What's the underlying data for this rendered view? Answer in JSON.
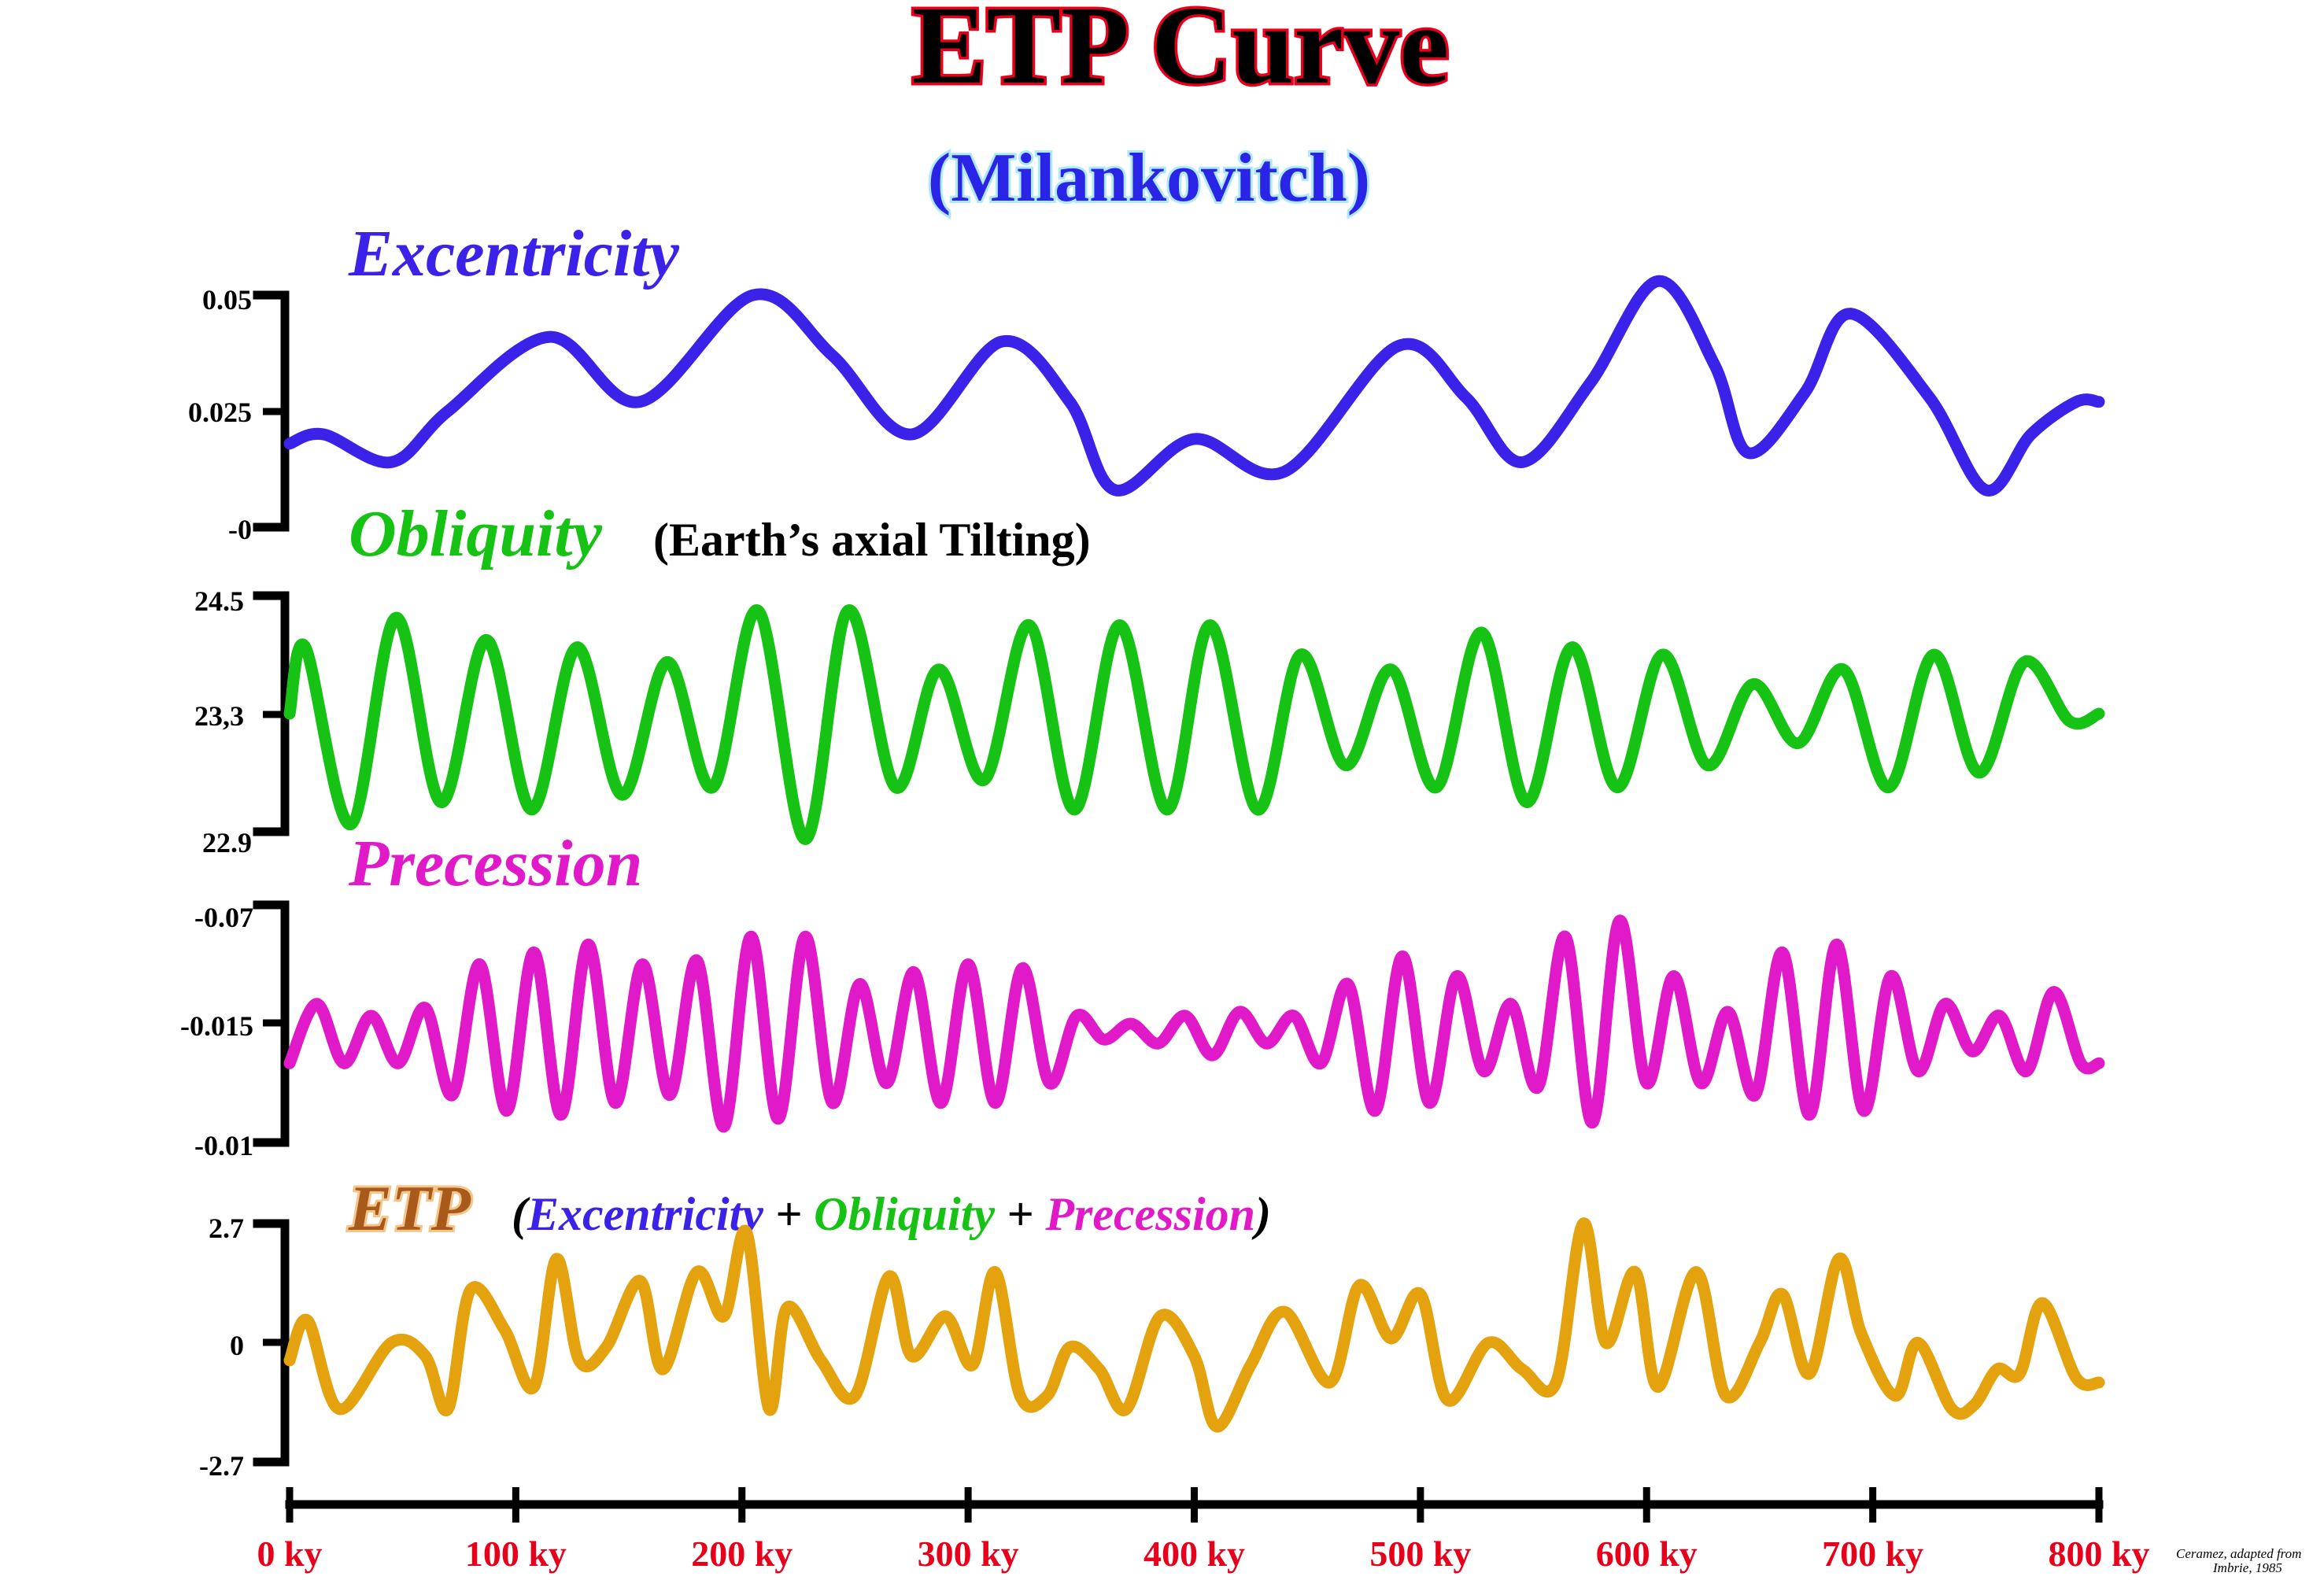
{
  "title": "ETP Curve",
  "subtitle": "(Milankovitch)",
  "credit_line1": "Ceramez, adapted from",
  "credit_line2": "Imbrie, 1985",
  "colors": {
    "title_fill": "#000000",
    "title_outline": "#e8001a",
    "subtitle": "#2a24e6",
    "excentricity": "#3a22e8",
    "obliquity": "#16c214",
    "precession": "#e01ac8",
    "etp": "#e3a20e",
    "x_tick_labels": "#e8001a"
  },
  "chart_data": {
    "type": "line",
    "x": [
      0,
      20,
      40,
      70,
      110,
      130,
      150,
      170,
      210,
      230,
      260,
      300,
      330,
      360,
      380,
      400,
      420,
      440,
      490,
      510,
      540,
      560,
      580,
      600,
      620,
      640,
      660,
      700,
      720,
      740,
      760,
      780,
      800
    ],
    "x_tick_labels": [
      "0 ky",
      "100 ky",
      "200 ky",
      "300 ky",
      "400 ky",
      "500 ky",
      "600 ky",
      "700 ky",
      "800 ky"
    ],
    "xlim": [
      0,
      800
    ],
    "panels": [
      {
        "name": "Excentricity",
        "note": "",
        "ylim": [
          0,
          0.05
        ],
        "y_ticks": [
          "0.05",
          "0.025",
          "-0"
        ],
        "series": [
          {
            "name": "Excentricity",
            "x": [
              0,
              15,
              45,
              70,
              115,
              155,
              205,
              240,
              275,
              315,
              345,
              365,
              400,
              440,
              490,
              520,
              545,
              575,
              605,
              630,
              645,
              670,
              690,
              725,
              750,
              770,
              790,
              800
            ],
            "values": [
              0.018,
              0.02,
              0.014,
              0.025,
              0.041,
              0.027,
              0.05,
              0.037,
              0.02,
              0.04,
              0.027,
              0.008,
              0.019,
              0.012,
              0.039,
              0.028,
              0.014,
              0.031,
              0.053,
              0.035,
              0.016,
              0.029,
              0.046,
              0.028,
              0.008,
              0.02,
              0.027,
              0.027
            ]
          }
        ]
      },
      {
        "name": "Obliquity",
        "note": "(Earth’s axial Tilting)",
        "ylim": [
          22.9,
          24.5
        ],
        "y_ticks": [
          "24.5",
          "23,3",
          "22.9"
        ],
        "series": [
          {
            "name": "Obliquity",
            "x": [
              0,
              7,
              27,
              47,
              67,
              87,
              107,
              127,
              147,
              167,
              187,
              207,
              228,
              247,
              268,
              287,
              307,
              327,
              347,
              367,
              388,
              407,
              428,
              447,
              467,
              487,
              507,
              527,
              547,
              567,
              587,
              607,
              627,
              647,
              667,
              687,
              707,
              727,
              747,
              767,
              787,
              800
            ],
            "values": [
              23.7,
              24.15,
              22.95,
              24.35,
              23.1,
              24.2,
              23.05,
              24.15,
              23.15,
              24.05,
              23.2,
              24.4,
              22.85,
              24.4,
              23.2,
              24.0,
              23.25,
              24.3,
              23.05,
              24.3,
              23.05,
              24.3,
              23.05,
              24.1,
              23.35,
              24.0,
              23.2,
              24.25,
              23.1,
              24.15,
              23.2,
              24.1,
              23.35,
              23.9,
              23.5,
              24.0,
              23.2,
              24.1,
              23.3,
              24.05,
              23.65,
              23.7
            ]
          }
        ]
      },
      {
        "name": "Precession",
        "note": "",
        "ylim": [
          -0.07,
          -0.01
        ],
        "y_ticks": [
          "-0.07",
          "-0.015",
          "-0.01"
        ],
        "series": [
          {
            "name": "Precession",
            "x": [
              0,
              12,
              24,
              36,
              48,
              60,
              72,
              84,
              96,
              108,
              120,
              132,
              144,
              156,
              168,
              180,
              192,
              204,
              216,
              228,
              240,
              252,
              264,
              276,
              288,
              300,
              312,
              324,
              336,
              348,
              360,
              372,
              384,
              396,
              408,
              420,
              432,
              444,
              456,
              468,
              480,
              492,
              504,
              516,
              528,
              540,
              552,
              564,
              576,
              588,
              600,
              612,
              624,
              636,
              648,
              660,
              672,
              684,
              696,
              708,
              720,
              732,
              744,
              756,
              768,
              780,
              792,
              800
            ],
            "values": [
              -0.03,
              -0.045,
              -0.03,
              -0.042,
              -0.03,
              -0.044,
              -0.022,
              -0.055,
              -0.018,
              -0.058,
              -0.017,
              -0.06,
              -0.02,
              -0.055,
              -0.022,
              -0.056,
              -0.014,
              -0.062,
              -0.016,
              -0.062,
              -0.02,
              -0.05,
              -0.025,
              -0.053,
              -0.02,
              -0.055,
              -0.02,
              -0.054,
              -0.025,
              -0.042,
              -0.036,
              -0.04,
              -0.035,
              -0.042,
              -0.032,
              -0.043,
              -0.035,
              -0.042,
              -0.03,
              -0.05,
              -0.018,
              -0.057,
              -0.02,
              -0.052,
              -0.028,
              -0.045,
              -0.024,
              -0.062,
              -0.015,
              -0.066,
              -0.025,
              -0.052,
              -0.025,
              -0.043,
              -0.022,
              -0.058,
              -0.017,
              -0.06,
              -0.018,
              -0.052,
              -0.028,
              -0.045,
              -0.033,
              -0.042,
              -0.028,
              -0.048,
              -0.03,
              -0.03
            ]
          }
        ]
      },
      {
        "name": "ETP",
        "note": "",
        "ylim": [
          -2.7,
          2.7
        ],
        "y_ticks": [
          "2.7",
          "0",
          "-2.7"
        ],
        "components": [
          "Excentricity",
          "Obliquity",
          "Precession"
        ],
        "series": [
          {
            "name": "ETP",
            "x": [
              0,
              8,
              22,
              45,
              60,
              70,
              80,
              95,
              108,
              118,
              128,
              140,
              155,
              165,
              180,
              192,
              202,
              212,
              220,
              235,
              250,
              265,
              275,
              290,
              302,
              312,
              323,
              335,
              345,
              358,
              370,
              385,
              400,
              410,
              425,
              440,
              460,
              473,
              487,
              500,
              512,
              530,
              545,
              560,
              572,
              582,
              595,
              605,
              622,
              635,
              650,
              660,
              672,
              685,
              695,
              710,
              720,
              735,
              745,
              755,
              765,
              775,
              790,
              800
            ],
            "values": [
              -0.4,
              0.5,
              -1.5,
              0.0,
              -0.3,
              -1.5,
              1.2,
              0.3,
              -1.0,
              1.9,
              -0.4,
              -0.1,
              1.4,
              -0.6,
              1.6,
              0.6,
              2.5,
              -1.5,
              0.8,
              -0.4,
              -1.2,
              1.5,
              -0.3,
              0.6,
              -0.5,
              1.6,
              -1.2,
              -1.2,
              -0.1,
              -0.6,
              -1.5,
              0.6,
              -0.3,
              -1.9,
              -0.5,
              0.7,
              -0.9,
              1.3,
              0.1,
              1.1,
              -1.3,
              0.0,
              -0.6,
              -0.9,
              2.7,
              0.0,
              1.6,
              -1.0,
              1.6,
              -1.2,
              0.0,
              1.1,
              -0.7,
              1.9,
              0.2,
              -1.2,
              0.0,
              -1.5,
              -1.4,
              -0.6,
              -0.7,
              0.9,
              -0.8,
              -0.9
            ]
          }
        ]
      }
    ]
  }
}
